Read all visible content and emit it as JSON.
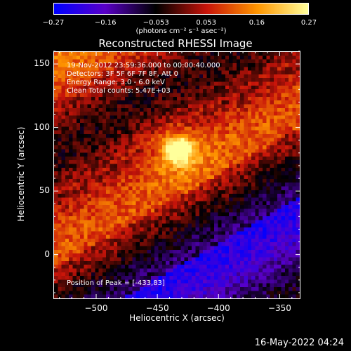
{
  "chart_data": {
    "type": "heatmap",
    "title": "Reconstructed RHESSI Image",
    "xlabel": "Heliocentric X (arcsec)",
    "ylabel": "Heliocentric Y (arcsec)",
    "xlim": [
      -535,
      -333
    ],
    "ylim": [
      -35,
      160
    ],
    "x_ticks": [
      -500,
      -450,
      -400,
      -350
    ],
    "x_tick_labels": [
      "−500",
      "−450",
      "−400",
      "−350"
    ],
    "y_ticks": [
      0,
      50,
      100,
      150
    ],
    "y_tick_labels": [
      "0",
      "50",
      "100",
      "150"
    ],
    "colorbar": {
      "range": [
        -0.27,
        0.27
      ],
      "tick_labels": [
        "−0.27",
        "−0.16",
        "−0.053",
        "0.053",
        "0.16",
        "0.27"
      ],
      "tick_values": [
        -0.27,
        -0.16,
        -0.053,
        0.053,
        0.16,
        0.27
      ],
      "units": "(photons cm⁻² s⁻¹ asec⁻²)"
    },
    "peak": [
      -433,
      83
    ],
    "peak_value": 0.27,
    "grid": false
  },
  "info": {
    "time_range": "19-Nov-2012 23:59:36.000 to 00:00:40.000",
    "detectors": "Detectors: 3F 5F 6F 7F 8F, Att 0",
    "energy": "Energy Range: 3.0 - 6.0 keV",
    "clean": "Clean     Total counts: 5.47E+03",
    "peak_text": "Position of Peak = [-433,83]"
  },
  "footer": "16-May-2022 04:24",
  "colors": {
    "background": "#000000",
    "foreground": "#ffffff",
    "colormap": [
      "#0000ff",
      "#5a00c8",
      "#000000",
      "#c8140a",
      "#ff9600",
      "#ffff9b"
    ]
  }
}
